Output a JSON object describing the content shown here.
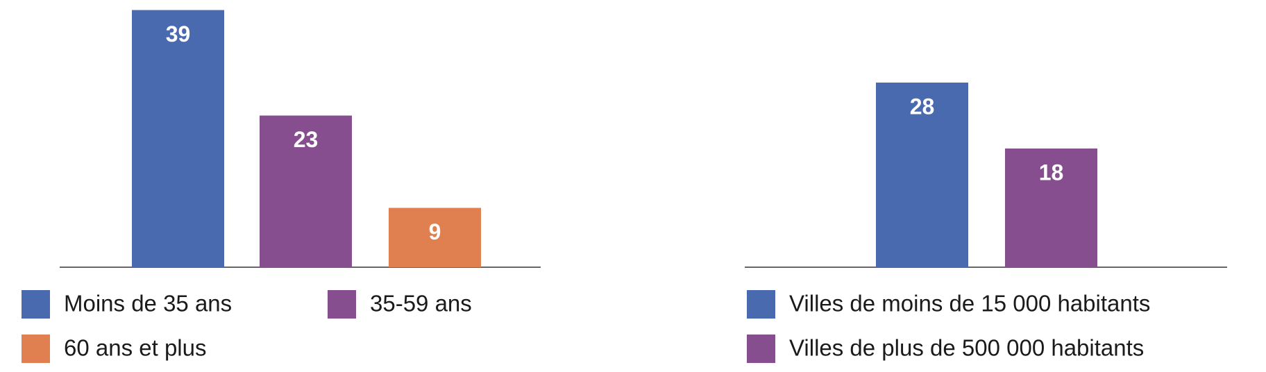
{
  "chart_data": [
    {
      "type": "bar",
      "categories": [
        "Moins de 35 ans",
        "35-59 ans",
        "60 ans et plus"
      ],
      "values": [
        39,
        23,
        9
      ],
      "colors": [
        "#4a6ab0",
        "#864d8f",
        "#e07f4f"
      ]
    },
    {
      "type": "bar",
      "categories": [
        "Villes de moins de 15 000 habitants",
        "Villes de plus de 500 000 habitants"
      ],
      "values": [
        28,
        18
      ],
      "colors": [
        "#4a6ab0",
        "#864d8f"
      ]
    }
  ]
}
